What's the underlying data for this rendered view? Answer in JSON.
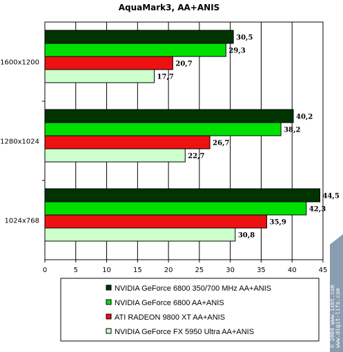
{
  "chart_data": {
    "type": "bar",
    "orientation": "horizontal",
    "title": "AquaMark3, AA+ANIS",
    "categories": [
      "1600x1200",
      "1280x1024",
      "1024x768"
    ],
    "series": [
      {
        "name": "NVIDIA GeForce 6800 350/700 MHz AA+ANIS",
        "color": "#003300",
        "values": [
          30.5,
          40.2,
          44.5
        ],
        "labels": [
          "30,5",
          "40,2",
          "44,5"
        ]
      },
      {
        "name": "NVIDIA GeForce 6800 AA+ANIS",
        "color": "#00e000",
        "values": [
          29.3,
          38.2,
          42.3
        ],
        "labels": [
          "29,3",
          "38,2",
          "42,3"
        ]
      },
      {
        "name": "ATI RADEON 9800 XT AA+ANIS",
        "color": "#ee1111",
        "values": [
          20.7,
          26.7,
          35.9
        ],
        "labels": [
          "20,7",
          "26,7",
          "35,9"
        ]
      },
      {
        "name": "NVIDIA GeForce FX 5950 Ultra AA+ANIS",
        "color": "#ccffcc",
        "values": [
          17.7,
          22.7,
          30.8
        ],
        "labels": [
          "17,7",
          "22,7",
          "30,8"
        ]
      }
    ],
    "xlim": [
      0,
      45
    ],
    "xticks": [
      0,
      5,
      10,
      15,
      20,
      25,
      30,
      35,
      40,
      45
    ],
    "grid": true,
    "legend_position": "bottom"
  },
  "watermark": {
    "lines": [
      "© 2004 www.ixbt.com",
      "www.digit-life.com"
    ]
  }
}
